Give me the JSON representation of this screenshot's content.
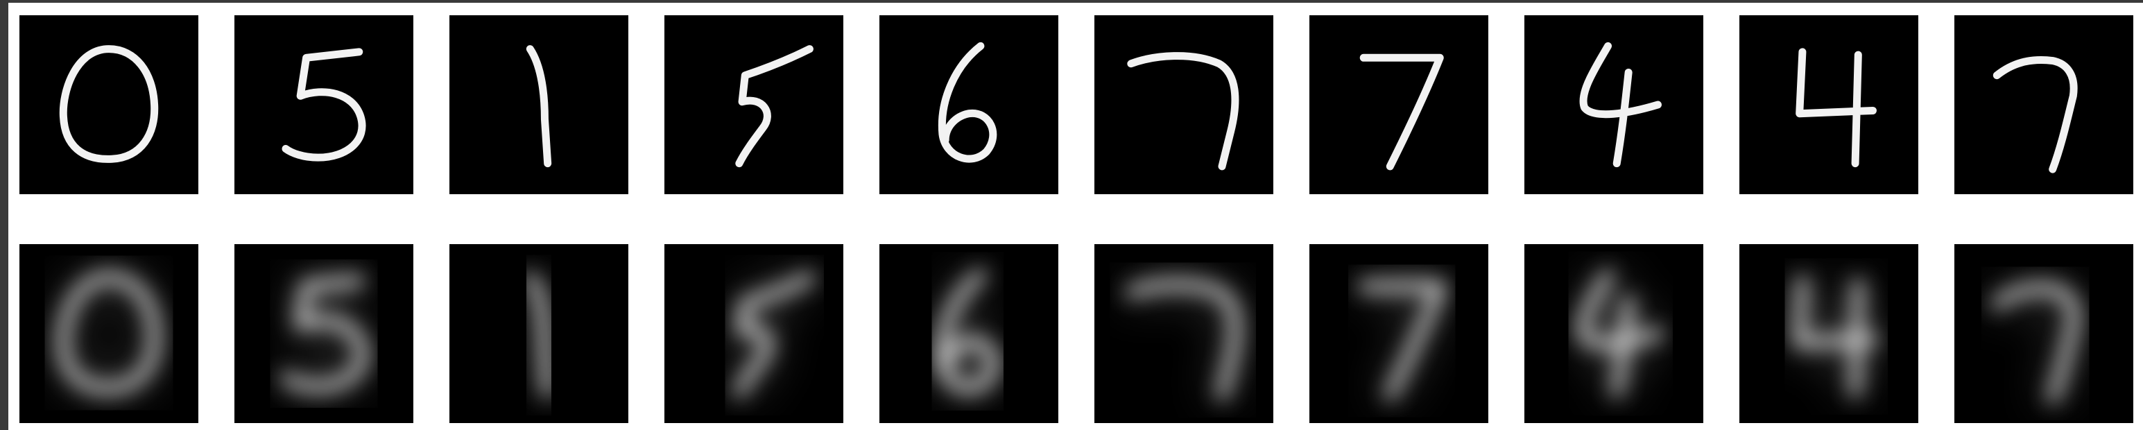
{
  "figure": {
    "background": "#ffffff",
    "frame_color": "#3a3a3a",
    "tile_background": "#000000",
    "stroke_color": "#f2f2f2",
    "rows": [
      {
        "name": "original-row",
        "style": "sharp",
        "digits": [
          "0",
          "5",
          "1",
          "5",
          "6",
          "7",
          "7",
          "4",
          "4",
          "7"
        ]
      },
      {
        "name": "reconstruction-row",
        "style": "blurred",
        "digits": [
          "0",
          "5",
          "1",
          "5",
          "6",
          "7",
          "7",
          "4",
          "4",
          "7"
        ]
      }
    ]
  }
}
